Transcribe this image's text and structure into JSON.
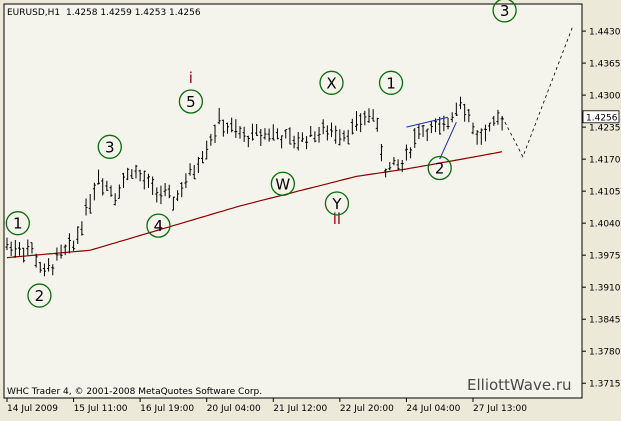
{
  "header": {
    "symbol": "EURUSD,H1",
    "ohlc": "1.4258 1.4259 1.4253 1.4256"
  },
  "footer": {
    "copyright": "WHC Trader 4, © 2001-2008 MetaQuotes Software Corp.",
    "watermark": "ElliottWave.ru"
  },
  "colors": {
    "background": "#f4f4ec",
    "bars": "#000000",
    "moving_average": "#8b0000",
    "wave_labels": "#0a6b0a",
    "roman_labels": "#a00000",
    "projection": "#000000",
    "current_price_box": "#ffffff"
  },
  "chart_data": {
    "type": "ohlc",
    "title": "EURUSD,H1",
    "current_price": "1.4256",
    "y_range": [
      1.3685,
      1.4485
    ],
    "y_ticks": [
      "1.4430",
      "1.4365",
      "1.4300",
      "1.4235",
      "1.4170",
      "1.4105",
      "1.4040",
      "1.3975",
      "1.3910",
      "1.3845",
      "1.3780",
      "1.3715"
    ],
    "x_ticks": [
      "14 Jul 2009",
      "15 Jul 11:00",
      "16 Jul 19:00",
      "20 Jul 04:00",
      "21 Jul 12:00",
      "22 Jul 20:00",
      "24 Jul 04:00",
      "27 Jul 13:00"
    ],
    "x_tick_index": [
      0,
      16,
      32,
      48,
      64,
      80,
      96,
      112
    ],
    "bar_count": 120,
    "price_path": [
      [
        0,
        1.3995
      ],
      [
        6,
        1.3985
      ],
      [
        9,
        1.3935
      ],
      [
        12,
        1.3968
      ],
      [
        16,
        1.3995
      ],
      [
        22,
        1.4135
      ],
      [
        26,
        1.41
      ],
      [
        30,
        1.415
      ],
      [
        35,
        1.411
      ],
      [
        40,
        1.4085
      ],
      [
        45,
        1.415
      ],
      [
        51,
        1.4245
      ],
      [
        57,
        1.4215
      ],
      [
        63,
        1.4225
      ],
      [
        69,
        1.4205
      ],
      [
        75,
        1.4225
      ],
      [
        82,
        1.4225
      ],
      [
        88,
        1.4265
      ],
      [
        91,
        1.415
      ],
      [
        95,
        1.416
      ],
      [
        99,
        1.423
      ],
      [
        105,
        1.423
      ],
      [
        109,
        1.4295
      ],
      [
        113,
        1.4215
      ],
      [
        116,
        1.4225
      ],
      [
        119,
        1.4256
      ]
    ],
    "moving_average": [
      [
        0,
        1.397
      ],
      [
        20,
        1.3985
      ],
      [
        40,
        1.4035
      ],
      [
        56,
        1.4075
      ],
      [
        70,
        1.4105
      ],
      [
        84,
        1.4135
      ],
      [
        96,
        1.415
      ],
      [
        108,
        1.4168
      ],
      [
        119,
        1.4185
      ]
    ],
    "wave_labels": [
      {
        "text": "1",
        "bar": 2,
        "price": 1.404
      },
      {
        "text": "2",
        "bar": 6,
        "price": 1.3893
      },
      {
        "text": "3",
        "bar": 19,
        "price": 1.4195
      },
      {
        "text": "4",
        "bar": 28,
        "price": 1.4035
      },
      {
        "text": "5",
        "bar": 34,
        "price": 1.4287
      },
      {
        "text": "W",
        "bar": 51,
        "price": 1.412
      },
      {
        "text": "X",
        "bar": 60,
        "price": 1.4325
      },
      {
        "text": "Y",
        "bar": 61,
        "price": 1.408
      },
      {
        "text": "1",
        "bar": 71,
        "price": 1.4325
      },
      {
        "text": "2",
        "bar": 80,
        "price": 1.4152
      },
      {
        "text": "3",
        "bar": 92,
        "price": 1.4472
      }
    ],
    "roman_labels": [
      {
        "text": "i",
        "bar": 34,
        "price": 1.4325
      },
      {
        "text": "ii",
        "bar": 61,
        "price": 1.4038
      }
    ],
    "projection": [
      [
        119,
        1.4256
      ],
      [
        124,
        1.4175
      ],
      [
        136,
        1.444
      ]
    ],
    "trendlines": [
      [
        [
          96,
          1.4235
        ],
        [
          106,
          1.4255
        ]
      ],
      [
        [
          104,
          1.417
        ],
        [
          108,
          1.4245
        ]
      ]
    ]
  }
}
